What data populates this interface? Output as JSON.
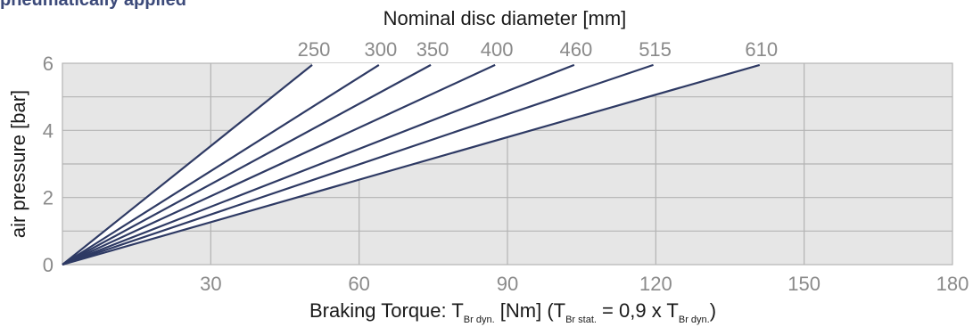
{
  "heading": "pneumatically applied",
  "colors": {
    "heading": "#3c4a7a",
    "plot_background": "#e6e6e6",
    "grid": "#b3b3b3",
    "series_line": "#2e3a64",
    "tick_label": "#8a8a8a",
    "axis_title": "#1a1a1a"
  },
  "chart_data": {
    "type": "line",
    "xlabel": {
      "main": "Braking Torque: T",
      "sub1": "Br dyn.",
      "mid1": " [Nm] (T",
      "sub2": "Br stat.",
      "mid2": " = 0,9 x T",
      "sub3": "Br dyn.",
      "end": ")"
    },
    "ylabel": "air pressure [bar]",
    "top_axis_label": "Nominal disc diameter [mm]",
    "xlim": [
      0,
      180
    ],
    "ylim": [
      0,
      6
    ],
    "x_ticks": [
      "0",
      "30",
      "60",
      "90",
      "120",
      "150",
      "180"
    ],
    "x_tick_values": [
      0,
      30,
      60,
      90,
      120,
      150,
      180
    ],
    "y_ticks": [
      "0",
      "2",
      "4",
      "6"
    ],
    "y_tick_values": [
      0,
      2,
      4,
      6
    ],
    "x_grid": [
      30,
      60,
      90,
      120,
      150
    ],
    "y_grid": [
      1,
      2,
      3,
      4,
      5
    ],
    "grid": true,
    "series": [
      {
        "name": "250",
        "x": [
          0,
          50.5
        ],
        "y": [
          0,
          5.95
        ]
      },
      {
        "name": "300",
        "x": [
          0,
          64
        ],
        "y": [
          0,
          5.95
        ]
      },
      {
        "name": "350",
        "x": [
          0,
          74.5
        ],
        "y": [
          0,
          5.95
        ]
      },
      {
        "name": "400",
        "x": [
          0,
          87.5
        ],
        "y": [
          0,
          5.95
        ]
      },
      {
        "name": "460",
        "x": [
          0,
          103.5
        ],
        "y": [
          0,
          5.95
        ]
      },
      {
        "name": "515",
        "x": [
          0,
          119.5
        ],
        "y": [
          0,
          5.95
        ]
      },
      {
        "name": "610",
        "x": [
          0,
          141
        ],
        "y": [
          0,
          5.95
        ]
      }
    ]
  }
}
